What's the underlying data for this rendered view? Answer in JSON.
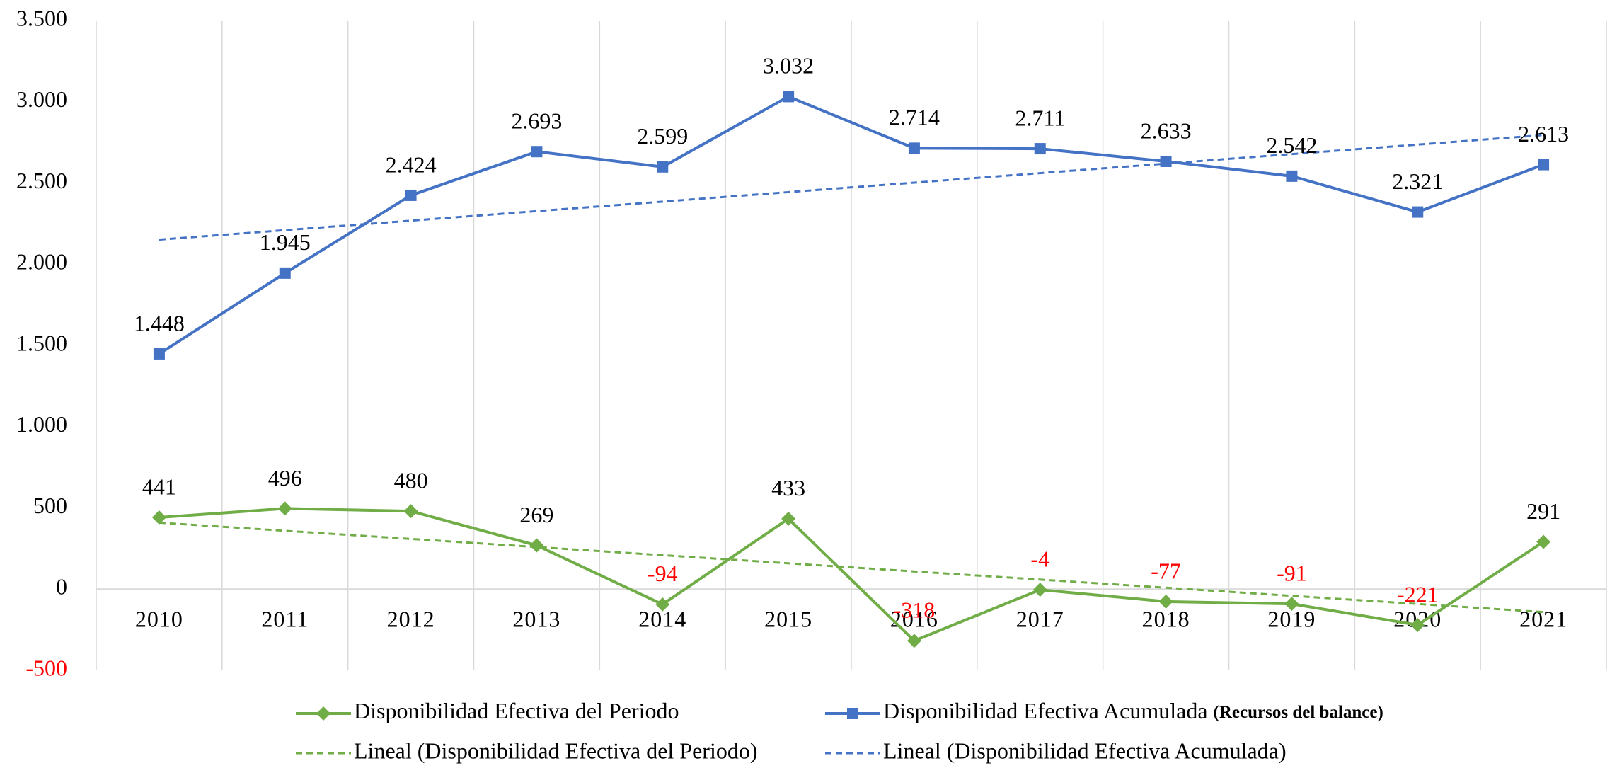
{
  "chart_data": {
    "type": "line",
    "categories": [
      "2010",
      "2011",
      "2012",
      "2013",
      "2014",
      "2015",
      "2016",
      "2017",
      "2018",
      "2019",
      "2020",
      "2021"
    ],
    "ylim": [
      -500,
      3500
    ],
    "yticks": [
      {
        "value": -500,
        "label": "-500"
      },
      0,
      500,
      {
        "value": 1000,
        "label": "1.000"
      },
      {
        "value": 1500,
        "label": "1.500"
      },
      {
        "value": 2000,
        "label": "2.000"
      },
      {
        "value": 2500,
        "label": "2.500"
      },
      {
        "value": 3000,
        "label": "3.000"
      },
      {
        "value": 3500,
        "label": "3.500"
      }
    ],
    "grid": "vertical",
    "negative_label_color": "#ff0000",
    "series": [
      {
        "name": "Disponibilidad Efectiva del Periodo",
        "color": "#70ad47",
        "marker": "diamond",
        "values": [
          441,
          496,
          480,
          269,
          -94,
          433,
          -318,
          -4,
          -77,
          -91,
          -221,
          291
        ],
        "trendline": {
          "name": "Lineal (Disponibilidad Efectiva del Periodo)"
        }
      },
      {
        "name": "Disponibilidad Efectiva Acumulada",
        "name_suffix": "(Recursos del balance)",
        "color": "#4472c4",
        "marker": "square",
        "values": [
          1448,
          1945,
          2424,
          2693,
          2599,
          3032,
          2714,
          2711,
          2633,
          2542,
          2321,
          2613
        ],
        "value_labels": [
          "1.448",
          "1.945",
          "2.424",
          "2.693",
          "2.599",
          "3.032",
          "2.714",
          "2.711",
          "2.633",
          "2.542",
          "2.321",
          "2.613"
        ],
        "trendline": {
          "name": "Lineal (Disponibilidad Efectiva Acumulada)"
        }
      }
    ]
  }
}
